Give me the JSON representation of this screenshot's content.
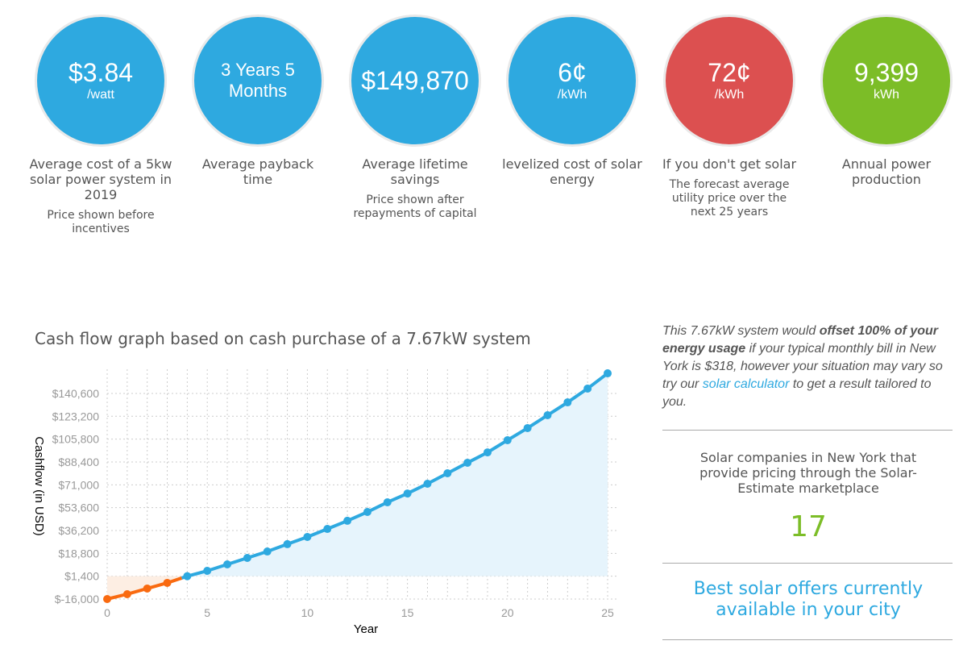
{
  "colors": {
    "blue": "#2ea9e0",
    "red": "#dc5050",
    "green": "#7cbd27",
    "orange": "#f96a10"
  },
  "stats": [
    {
      "value": "$3.84",
      "unit": "/watt",
      "label": "Average cost of a 5kw solar power system in 2019",
      "sub": "Price shown before incentives",
      "color": "#2ea9e0"
    },
    {
      "value": "3 Years 5 Months",
      "unit": "",
      "label": "Average payback time",
      "sub": "",
      "color": "#2ea9e0"
    },
    {
      "value": "$149,870",
      "unit": "",
      "label": "Average lifetime savings",
      "sub": "Price shown after repayments of capital",
      "color": "#2ea9e0"
    },
    {
      "value": "6¢",
      "unit": "/kWh",
      "label": "levelized cost of solar energy",
      "sub": "",
      "color": "#2ea9e0"
    },
    {
      "value": "72¢",
      "unit": "/kWh",
      "label": "If you don't get solar",
      "sub": "The forecast average utility price over the next 25 years",
      "color": "#dc5050"
    },
    {
      "value": "9,399",
      "unit": "kWh",
      "label": "Annual power production",
      "sub": "",
      "color": "#7cbd27"
    }
  ],
  "chart_data": {
    "type": "line",
    "title": "Cash flow graph based on cash purchase of a 7.67kW system",
    "xlabel": "Year",
    "ylabel": "Cashflow (in USD)",
    "x": [
      0,
      1,
      2,
      3,
      4,
      5,
      6,
      7,
      8,
      9,
      10,
      11,
      12,
      13,
      14,
      15,
      16,
      17,
      18,
      19,
      20,
      21,
      22,
      23,
      24,
      25
    ],
    "values": [
      -16000,
      -12300,
      -8000,
      -3700,
      1400,
      5500,
      10400,
      15300,
      20200,
      25800,
      31300,
      37400,
      43600,
      50300,
      57700,
      64400,
      71800,
      79800,
      87800,
      95700,
      105000,
      114200,
      124000,
      133800,
      144300,
      155900
    ],
    "xticks": [
      "0",
      "5",
      "10",
      "15",
      "20",
      "25"
    ],
    "yticks": [
      "$-16,000",
      "$1,400",
      "$18,800",
      "$36,200",
      "$53,600",
      "$71,000",
      "$88,400",
      "$105,800",
      "$123,200",
      "$140,600"
    ],
    "ytick_values": [
      -16000,
      1400,
      18800,
      36200,
      53600,
      71000,
      88400,
      105800,
      123200,
      140600
    ],
    "xlim": [
      0,
      25
    ],
    "ylim": [
      -16000,
      159000
    ],
    "grid": true
  },
  "note": {
    "pre": "This 7.67kW system would ",
    "bold": "offset 100% of your energy usage",
    "mid": " if your typical monthly bill in New York is $318, however your situation may vary so try our ",
    "link": "solar calculator",
    "post": " to get a result tailored to you."
  },
  "companies": {
    "text": "Solar companies in New York that provide pricing through the Solar-Estimate marketplace",
    "count": "17"
  },
  "offers": {
    "text": "Best solar offers currently available in your city"
  }
}
